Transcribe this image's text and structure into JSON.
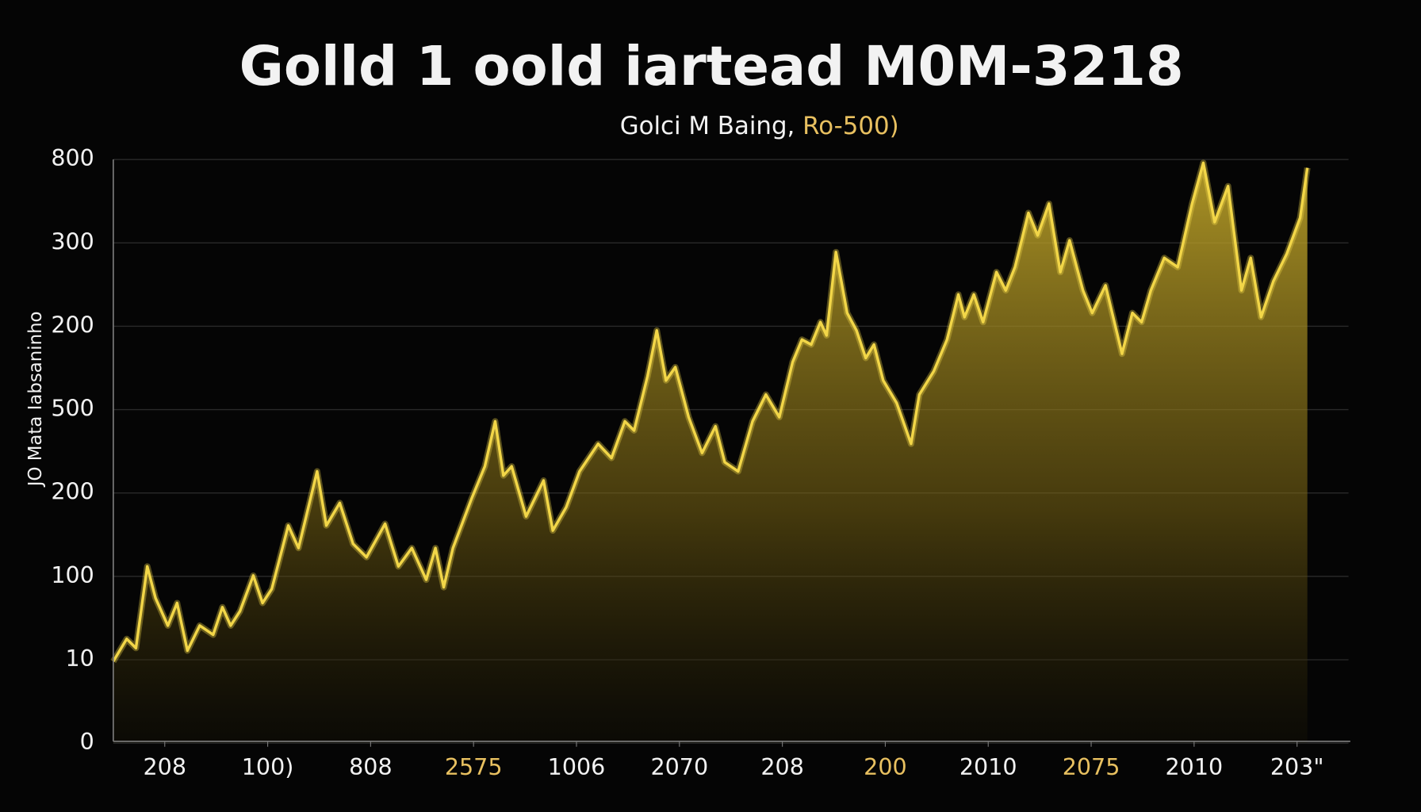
{
  "chart_data": {
    "type": "area-line",
    "title": "Golld 1 oold iartead M0M-3218",
    "subtitle": "Golci M Baing,",
    "subtitle_highlight": "Ro-500)",
    "ylabel": "JO  Mata Iabsaninho",
    "color": "#f2d648",
    "highlight_color": "#e8c060",
    "grid": true,
    "xlim": [
      0,
      12
    ],
    "ylim": [
      0,
      7
    ],
    "yticks": [
      {
        "value": 0,
        "label": "0"
      },
      {
        "value": 1,
        "label": "10"
      },
      {
        "value": 2,
        "label": "100"
      },
      {
        "value": 3,
        "label": "200"
      },
      {
        "value": 4,
        "label": "500"
      },
      {
        "value": 5,
        "label": "200"
      },
      {
        "value": 6,
        "label": "300"
      },
      {
        "value": 7,
        "label": "800"
      }
    ],
    "xticks": [
      {
        "value": 0.5,
        "label": "208"
      },
      {
        "value": 1.5,
        "label": "100)"
      },
      {
        "value": 2.5,
        "label": "808"
      },
      {
        "value": 3.5,
        "label": "2575",
        "highlight": true
      },
      {
        "value": 4.5,
        "label": "1006"
      },
      {
        "value": 5.5,
        "label": "2070"
      },
      {
        "value": 6.5,
        "label": "208"
      },
      {
        "value": 7.5,
        "label": "200",
        "highlight": true
      },
      {
        "value": 8.5,
        "label": "2010"
      },
      {
        "value": 9.5,
        "label": "2075",
        "highlight": true
      },
      {
        "value": 10.5,
        "label": "2010"
      },
      {
        "value": 11.5,
        "label": "203\""
      }
    ],
    "x": [
      0.0,
      0.13,
      0.22,
      0.33,
      0.41,
      0.53,
      0.62,
      0.72,
      0.84,
      0.97,
      1.06,
      1.14,
      1.23,
      1.36,
      1.45,
      1.54,
      1.7,
      1.8,
      1.98,
      2.07,
      2.2,
      2.33,
      2.46,
      2.64,
      2.77,
      2.9,
      3.04,
      3.13,
      3.21,
      3.3,
      3.48,
      3.61,
      3.71,
      3.79,
      3.87,
      4.01,
      4.18,
      4.27,
      4.4,
      4.53,
      4.71,
      4.84,
      4.97,
      5.06,
      5.19,
      5.28,
      5.37,
      5.46,
      5.59,
      5.72,
      5.85,
      5.94,
      6.07,
      6.21,
      6.34,
      6.47,
      6.6,
      6.69,
      6.78,
      6.87,
      6.93,
      7.02,
      7.13,
      7.22,
      7.31,
      7.39,
      7.48,
      7.61,
      7.75,
      7.83,
      7.97,
      8.1,
      8.21,
      8.27,
      8.36,
      8.45,
      8.58,
      8.67,
      8.76,
      8.89,
      8.98,
      9.09,
      9.2,
      9.29,
      9.42,
      9.51,
      9.64,
      9.8,
      9.9,
      9.99,
      10.08,
      10.21,
      10.34,
      10.48,
      10.59,
      10.7,
      10.83,
      10.96,
      11.05,
      11.15,
      11.27,
      11.4,
      11.53,
      11.6
    ],
    "values": [
      0.98,
      1.25,
      1.14,
      2.12,
      1.74,
      1.41,
      1.68,
      1.11,
      1.41,
      1.3,
      1.63,
      1.41,
      1.58,
      2.01,
      1.68,
      1.85,
      2.61,
      2.34,
      3.26,
      2.61,
      2.88,
      2.39,
      2.23,
      2.63,
      2.12,
      2.34,
      1.96,
      2.34,
      1.87,
      2.34,
      2.93,
      3.32,
      3.86,
      3.21,
      3.32,
      2.72,
      3.15,
      2.55,
      2.83,
      3.26,
      3.59,
      3.42,
      3.86,
      3.75,
      4.4,
      4.95,
      4.35,
      4.51,
      3.91,
      3.48,
      3.8,
      3.37,
      3.26,
      3.86,
      4.18,
      3.91,
      4.57,
      4.84,
      4.78,
      5.05,
      4.89,
      5.89,
      5.16,
      4.95,
      4.62,
      4.78,
      4.35,
      4.08,
      3.59,
      4.18,
      4.46,
      4.84,
      5.38,
      5.11,
      5.38,
      5.05,
      5.65,
      5.43,
      5.71,
      6.36,
      6.09,
      6.47,
      5.65,
      6.03,
      5.43,
      5.16,
      5.49,
      4.67,
      5.16,
      5.05,
      5.43,
      5.82,
      5.71,
      6.47,
      6.96,
      6.25,
      6.68,
      5.43,
      5.82,
      5.11,
      5.54,
      5.87,
      6.3,
      6.9
    ]
  }
}
